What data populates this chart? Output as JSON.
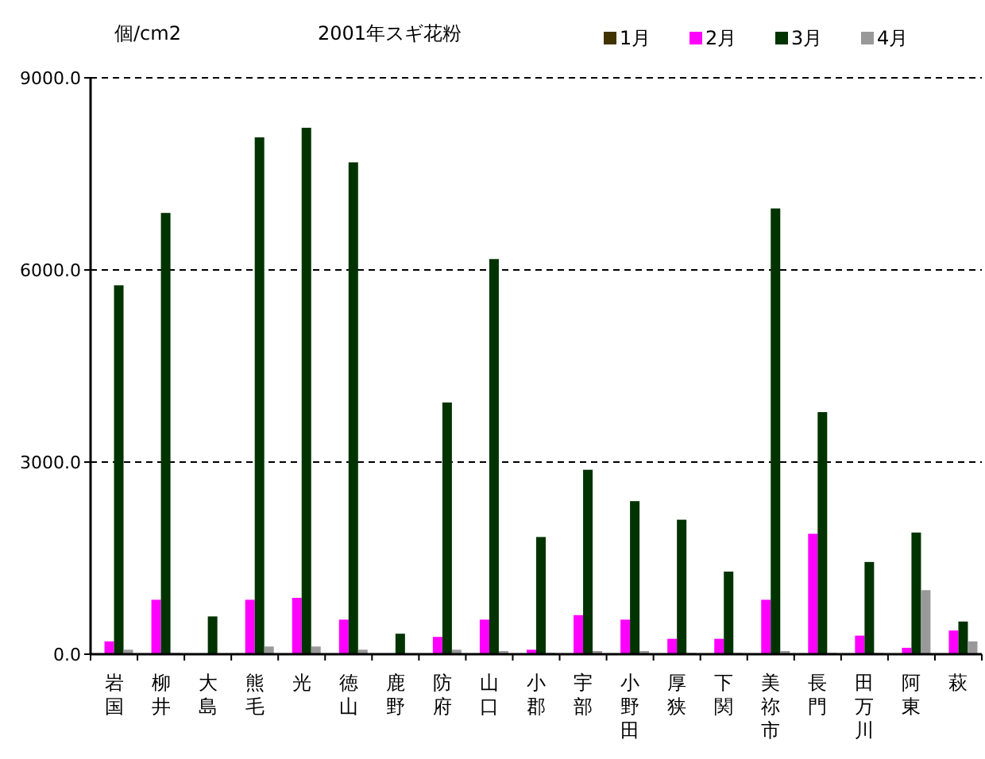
{
  "chart_data": {
    "type": "bar",
    "title": "2001年スギ花粉",
    "ylabel": "個/cm2",
    "categories": [
      "岩国",
      "柳井",
      "大島",
      "熊毛",
      "光",
      "徳山",
      "鹿野",
      "防府",
      "山口",
      "小郡",
      "宇部",
      "小野田",
      "厚狭",
      "下関",
      "美祢市",
      "長門",
      "田万川",
      "阿東",
      "萩"
    ],
    "series": [
      {
        "name": "1月",
        "color": "#403300",
        "values": [
          0,
          0,
          0,
          0,
          0,
          0,
          0,
          0,
          0,
          0,
          0,
          0,
          0,
          0,
          0,
          0,
          0,
          0,
          0
        ]
      },
      {
        "name": "2月",
        "color": "#ff00ff",
        "values": [
          200,
          850,
          0,
          850,
          880,
          540,
          0,
          270,
          540,
          70,
          610,
          540,
          240,
          240,
          850,
          1880,
          290,
          100,
          370
        ]
      },
      {
        "name": "3月",
        "color": "#003300",
        "values": [
          5760,
          6890,
          590,
          8070,
          8220,
          7680,
          320,
          3930,
          6170,
          1830,
          2880,
          2390,
          2100,
          1290,
          6960,
          3780,
          1440,
          1900,
          510
        ]
      },
      {
        "name": "4月",
        "color": "#999999",
        "values": [
          70,
          20,
          0,
          120,
          120,
          70,
          0,
          70,
          50,
          20,
          50,
          50,
          20,
          20,
          50,
          20,
          20,
          1000,
          200
        ]
      }
    ],
    "ylim": [
      0,
      9000
    ],
    "yticks": [
      {
        "value": 0,
        "label": "0.0"
      },
      {
        "value": 3000,
        "label": "3000.0"
      },
      {
        "value": 6000,
        "label": "6000.0"
      },
      {
        "value": 9000,
        "label": "9000.0"
      }
    ],
    "grid": "y",
    "legend": "top right"
  }
}
